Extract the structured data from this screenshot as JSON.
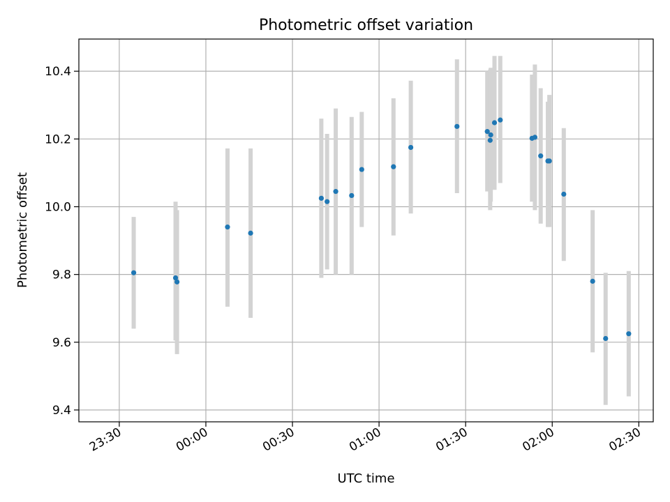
{
  "chart_data": {
    "type": "scatter",
    "title": "Photometric offset variation",
    "xlabel": "UTC time",
    "ylabel": "Photometric offset",
    "x_ticks": [
      "23:30",
      "00:00",
      "00:30",
      "01:00",
      "01:30",
      "02:00",
      "02:30"
    ],
    "y_ticks": [
      "9.4",
      "9.6",
      "9.8",
      "10.0",
      "10.2",
      "10.4"
    ],
    "x_tick_minutes": [
      -30,
      0,
      30,
      60,
      90,
      120,
      150
    ],
    "y_tick_values": [
      9.4,
      9.6,
      9.8,
      10.0,
      10.2,
      10.4
    ],
    "xlim_minutes": [
      -44,
      155
    ],
    "ylim": [
      9.365,
      10.495
    ],
    "grid": true,
    "marker_color": "#1f77b4",
    "errorbar_color": "#d3d3d3",
    "series": [
      {
        "x_minutes": [
          -25,
          -10.5,
          -10,
          7.5,
          15.5,
          40,
          42,
          45,
          50.5,
          54,
          65,
          71,
          87,
          97.5,
          98.5,
          98.7,
          100,
          102,
          113,
          114,
          116,
          118.5,
          119,
          124,
          134,
          138.5,
          146.5
        ],
        "y": [
          9.805,
          9.79,
          9.778,
          9.94,
          9.922,
          10.025,
          10.015,
          10.045,
          10.033,
          10.11,
          10.118,
          10.175,
          10.237,
          10.222,
          10.196,
          10.212,
          10.248,
          10.256,
          10.202,
          10.205,
          10.15,
          10.135,
          10.135,
          10.037,
          9.78,
          9.611,
          9.625
        ],
        "yerr_low": [
          9.64,
          9.605,
          9.565,
          9.705,
          9.672,
          9.79,
          9.815,
          9.8,
          9.8,
          9.94,
          9.915,
          9.98,
          10.04,
          10.045,
          9.99,
          10.015,
          10.05,
          10.07,
          10.015,
          9.99,
          9.95,
          9.94,
          9.94,
          9.84,
          9.57,
          9.415,
          9.44
        ],
        "yerr_high": [
          9.97,
          10.015,
          9.99,
          10.172,
          10.172,
          10.26,
          10.215,
          10.29,
          10.265,
          10.28,
          10.32,
          10.372,
          10.435,
          10.4,
          10.405,
          10.41,
          10.445,
          10.445,
          10.39,
          10.42,
          10.35,
          10.31,
          10.33,
          10.232,
          9.99,
          9.805,
          9.81
        ]
      }
    ]
  }
}
